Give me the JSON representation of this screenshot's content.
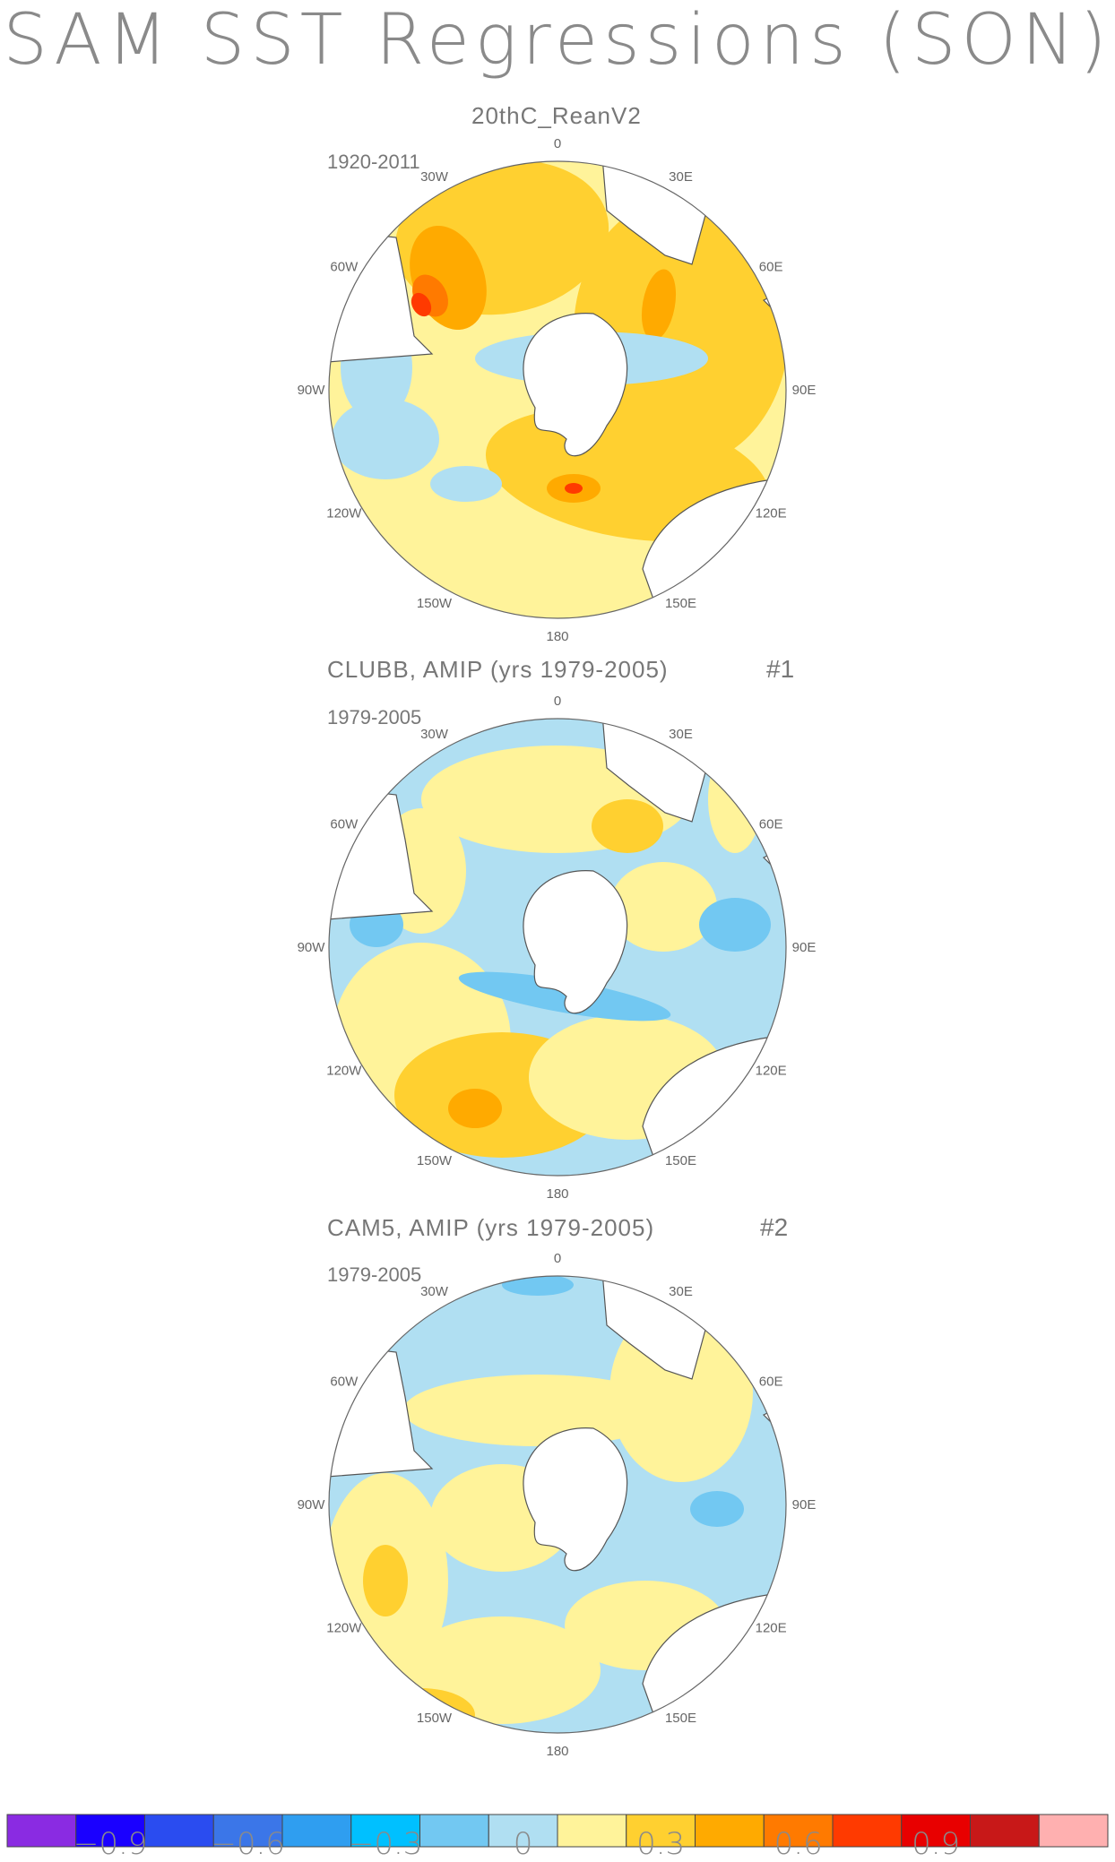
{
  "title": "SAM SST Regressions (SON)",
  "panels": [
    {
      "title": "20thC_ReanV2",
      "tag": "",
      "period": "1920-2011",
      "dominant": "warm",
      "lon_labels": [
        "0",
        "30E",
        "60E",
        "90E",
        "120E",
        "150E",
        "180",
        "150W",
        "120W",
        "90W",
        "60W",
        "30W"
      ]
    },
    {
      "title": "CLUBB, AMIP (yrs 1979-2005)",
      "tag": "#1",
      "period": "1979-2005",
      "dominant": "mixed",
      "lon_labels": [
        "0",
        "30E",
        "60E",
        "90E",
        "120E",
        "150E",
        "180",
        "150W",
        "120W",
        "90W",
        "60W",
        "30W"
      ]
    },
    {
      "title": "CAM5, AMIP (yrs 1979-2005)",
      "tag": "#2",
      "period": "1979-2005",
      "dominant": "cool",
      "lon_labels": [
        "0",
        "30E",
        "60E",
        "90E",
        "120E",
        "150E",
        "180",
        "150W",
        "120W",
        "90W",
        "60W",
        "30W"
      ]
    }
  ],
  "colorbar": {
    "colors": [
      "#8a2be2",
      "#1a00ff",
      "#2a4cf0",
      "#3b76e8",
      "#2f9ef0",
      "#00c0ff",
      "#72c8f2",
      "#b0dff2",
      "#fff39a",
      "#ffd030",
      "#ffaa00",
      "#ff7a00",
      "#ff3a00",
      "#e80000",
      "#c81818",
      "#ffb0b0"
    ],
    "tick_labels": [
      "−0.9",
      "−0.6",
      "−0.3",
      "0",
      "0.3",
      "0.6",
      "0.9"
    ],
    "tick_values": [
      -0.9,
      -0.6,
      -0.3,
      0,
      0.3,
      0.6,
      0.9
    ]
  }
}
